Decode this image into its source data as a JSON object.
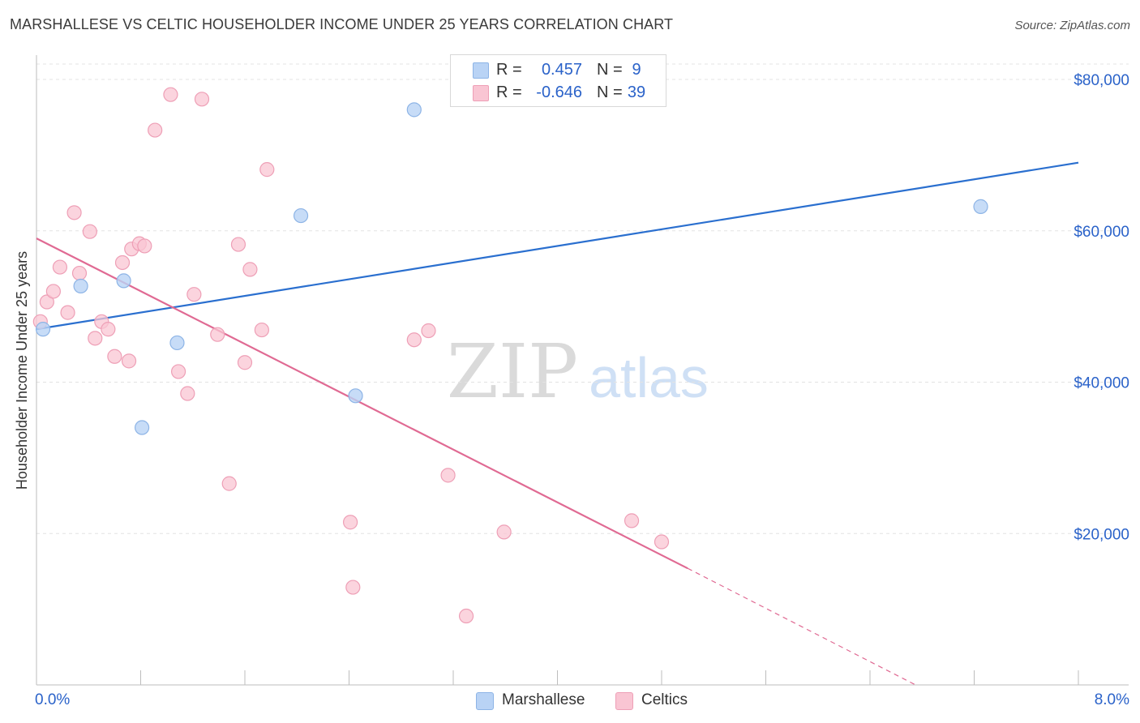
{
  "header": {
    "title": "MARSHALLESE VS CELTIC HOUSEHOLDER INCOME UNDER 25 YEARS CORRELATION CHART",
    "source": "Source: ZipAtlas.com"
  },
  "colors": {
    "blue_fill": "#b9d3f5",
    "blue_stroke": "#8db4e6",
    "blue_line": "#2a6fcf",
    "pink_fill": "#f9c5d3",
    "pink_stroke": "#ee9fb6",
    "pink_line": "#e06a93",
    "axis_label": "#2a62c9",
    "grid": "#e3e3e3"
  },
  "legend": {
    "rows": [
      {
        "r_label": "R =",
        "r_value": "0.457",
        "n_label": "N =",
        "n_value": "9"
      },
      {
        "r_label": "R =",
        "r_value": "-0.646",
        "n_label": "N =",
        "n_value": "39"
      }
    ]
  },
  "watermark": {
    "zip": "ZIP",
    "atlas": "atlas"
  },
  "bottom_legend": {
    "items": [
      "Marshallese",
      "Celtics"
    ]
  },
  "chart_data": {
    "type": "scatter",
    "title": "MARSHALLESE VS CELTIC HOUSEHOLDER INCOME UNDER 25 YEARS CORRELATION CHART",
    "xlabel": "",
    "ylabel": "Householder Income Under 25 years",
    "xlim": [
      0,
      8
    ],
    "ylim": [
      0,
      83000
    ],
    "x_tick_labels": [
      "0.0%",
      "8.0%"
    ],
    "y_ticks": [
      20000,
      40000,
      60000,
      80000
    ],
    "y_tick_labels": [
      "$20,000",
      "$40,000",
      "$60,000",
      "$80,000"
    ],
    "grid": true,
    "series": [
      {
        "name": "Marshallese",
        "points": [
          [
            0.05,
            47000
          ],
          [
            0.34,
            52700
          ],
          [
            0.67,
            53400
          ],
          [
            1.08,
            45200
          ],
          [
            2.03,
            62000
          ],
          [
            2.9,
            76000
          ],
          [
            2.45,
            38200
          ],
          [
            0.81,
            34000
          ],
          [
            7.25,
            63200
          ]
        ],
        "trend": {
          "x0": 0.0,
          "y0": 47000,
          "x1": 8.0,
          "y1": 69000
        }
      },
      {
        "name": "Celtics",
        "points": [
          [
            0.03,
            48000
          ],
          [
            0.08,
            50600
          ],
          [
            0.13,
            52000
          ],
          [
            0.18,
            55200
          ],
          [
            0.24,
            49200
          ],
          [
            0.29,
            62400
          ],
          [
            0.41,
            59900
          ],
          [
            0.33,
            54400
          ],
          [
            0.45,
            45800
          ],
          [
            0.5,
            48000
          ],
          [
            0.55,
            47000
          ],
          [
            0.6,
            43400
          ],
          [
            0.66,
            55800
          ],
          [
            0.71,
            42800
          ],
          [
            0.73,
            57600
          ],
          [
            0.79,
            58300
          ],
          [
            0.83,
            58000
          ],
          [
            0.91,
            73300
          ],
          [
            1.03,
            78000
          ],
          [
            1.09,
            41400
          ],
          [
            1.16,
            38500
          ],
          [
            1.21,
            51600
          ],
          [
            1.27,
            77400
          ],
          [
            1.39,
            46300
          ],
          [
            1.48,
            26600
          ],
          [
            1.55,
            58200
          ],
          [
            1.6,
            42600
          ],
          [
            1.64,
            54900
          ],
          [
            1.73,
            46900
          ],
          [
            1.77,
            68100
          ],
          [
            2.41,
            21500
          ],
          [
            2.43,
            12900
          ],
          [
            2.9,
            45600
          ],
          [
            3.01,
            46800
          ],
          [
            3.16,
            27700
          ],
          [
            3.3,
            9100
          ],
          [
            3.59,
            20200
          ],
          [
            4.57,
            21700
          ],
          [
            4.8,
            18900
          ]
        ],
        "trend": {
          "x0": 0.0,
          "y0": 59000,
          "x1": 5.0,
          "y1": 15400
        },
        "trend_extension": {
          "x0": 5.0,
          "y0": 15400,
          "x1": 6.75,
          "y1": 0
        }
      }
    ]
  }
}
